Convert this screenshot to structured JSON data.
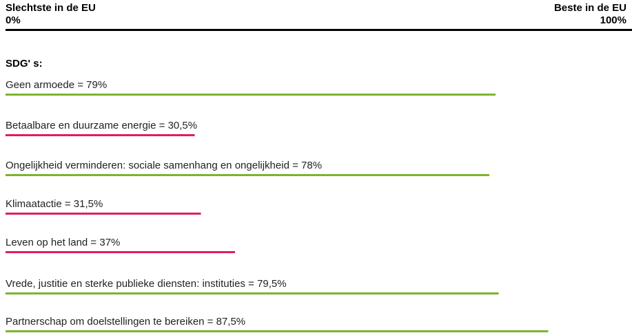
{
  "chart_data": {
    "type": "bar",
    "orientation": "horizontal",
    "left_label": "Slechtste in de EU",
    "right_label": "Beste in de EU",
    "xlim": [
      0,
      100
    ],
    "xticks": [
      {
        "value": 0,
        "label": "0%"
      },
      {
        "value": 100,
        "label": "100%"
      }
    ],
    "subtitle": "SDG' s:",
    "categories": [
      "Geen armoede = 79%",
      "Betaalbare en duurzame energie = 30,5%",
      "Ongelijkheid verminderen: sociale samenhang en ongelijkheid = 78%",
      "Klimaatactie = 31,5%",
      "Leven op het land = 37%",
      "Vrede, justitie en sterke publieke diensten: instituties = 79,5%",
      "Partnerschap om doelstellingen te bereiken = 87,5%"
    ],
    "values": [
      79,
      30.5,
      78,
      31.5,
      37,
      79.5,
      87.5
    ],
    "colors": [
      "#7cb32f",
      "#e01e5a",
      "#7cb32f",
      "#e01e5a",
      "#e01e5a",
      "#7cb32f",
      "#7cb32f"
    ]
  }
}
